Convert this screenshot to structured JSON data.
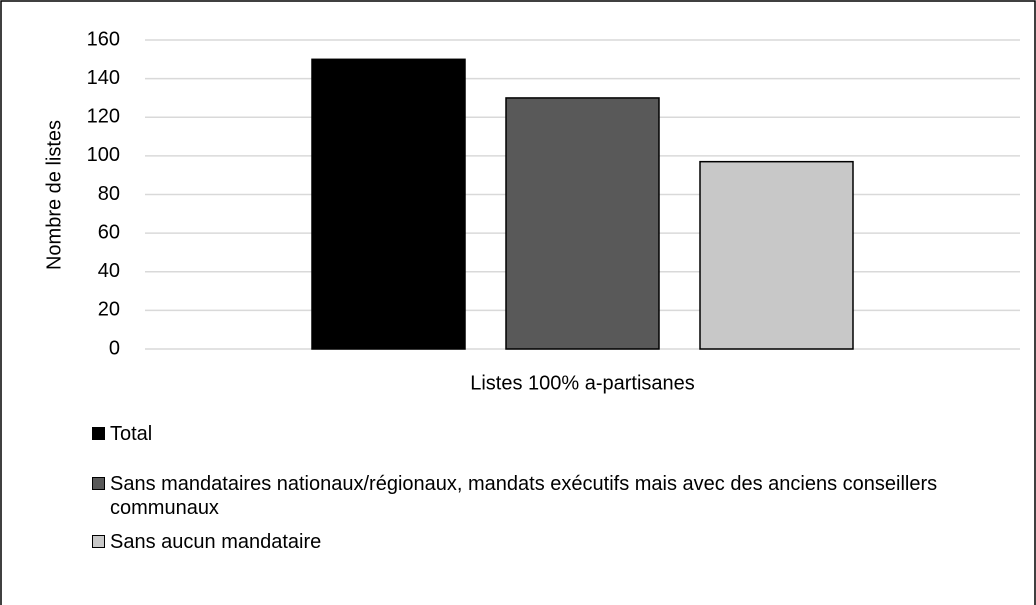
{
  "chart_data": {
    "type": "bar",
    "categories": [
      "Listes 100% a-partisanes"
    ],
    "series": [
      {
        "name": "Total",
        "color": "#000000",
        "values": [
          150
        ]
      },
      {
        "name": "Sans mandataires nationaux/régionaux, mandats exécutifs mais avec des anciens conseillers communaux",
        "color": "#595959",
        "values": [
          130
        ]
      },
      {
        "name": "Sans aucun mandataire",
        "color": "#c8c8c8",
        "values": [
          97
        ]
      }
    ],
    "y_label": "Nombre de listes",
    "ylim": [
      0,
      160
    ],
    "yticks": [
      0,
      20,
      40,
      60,
      80,
      100,
      120,
      140,
      160
    ],
    "grid": true,
    "legend": "bottom"
  }
}
